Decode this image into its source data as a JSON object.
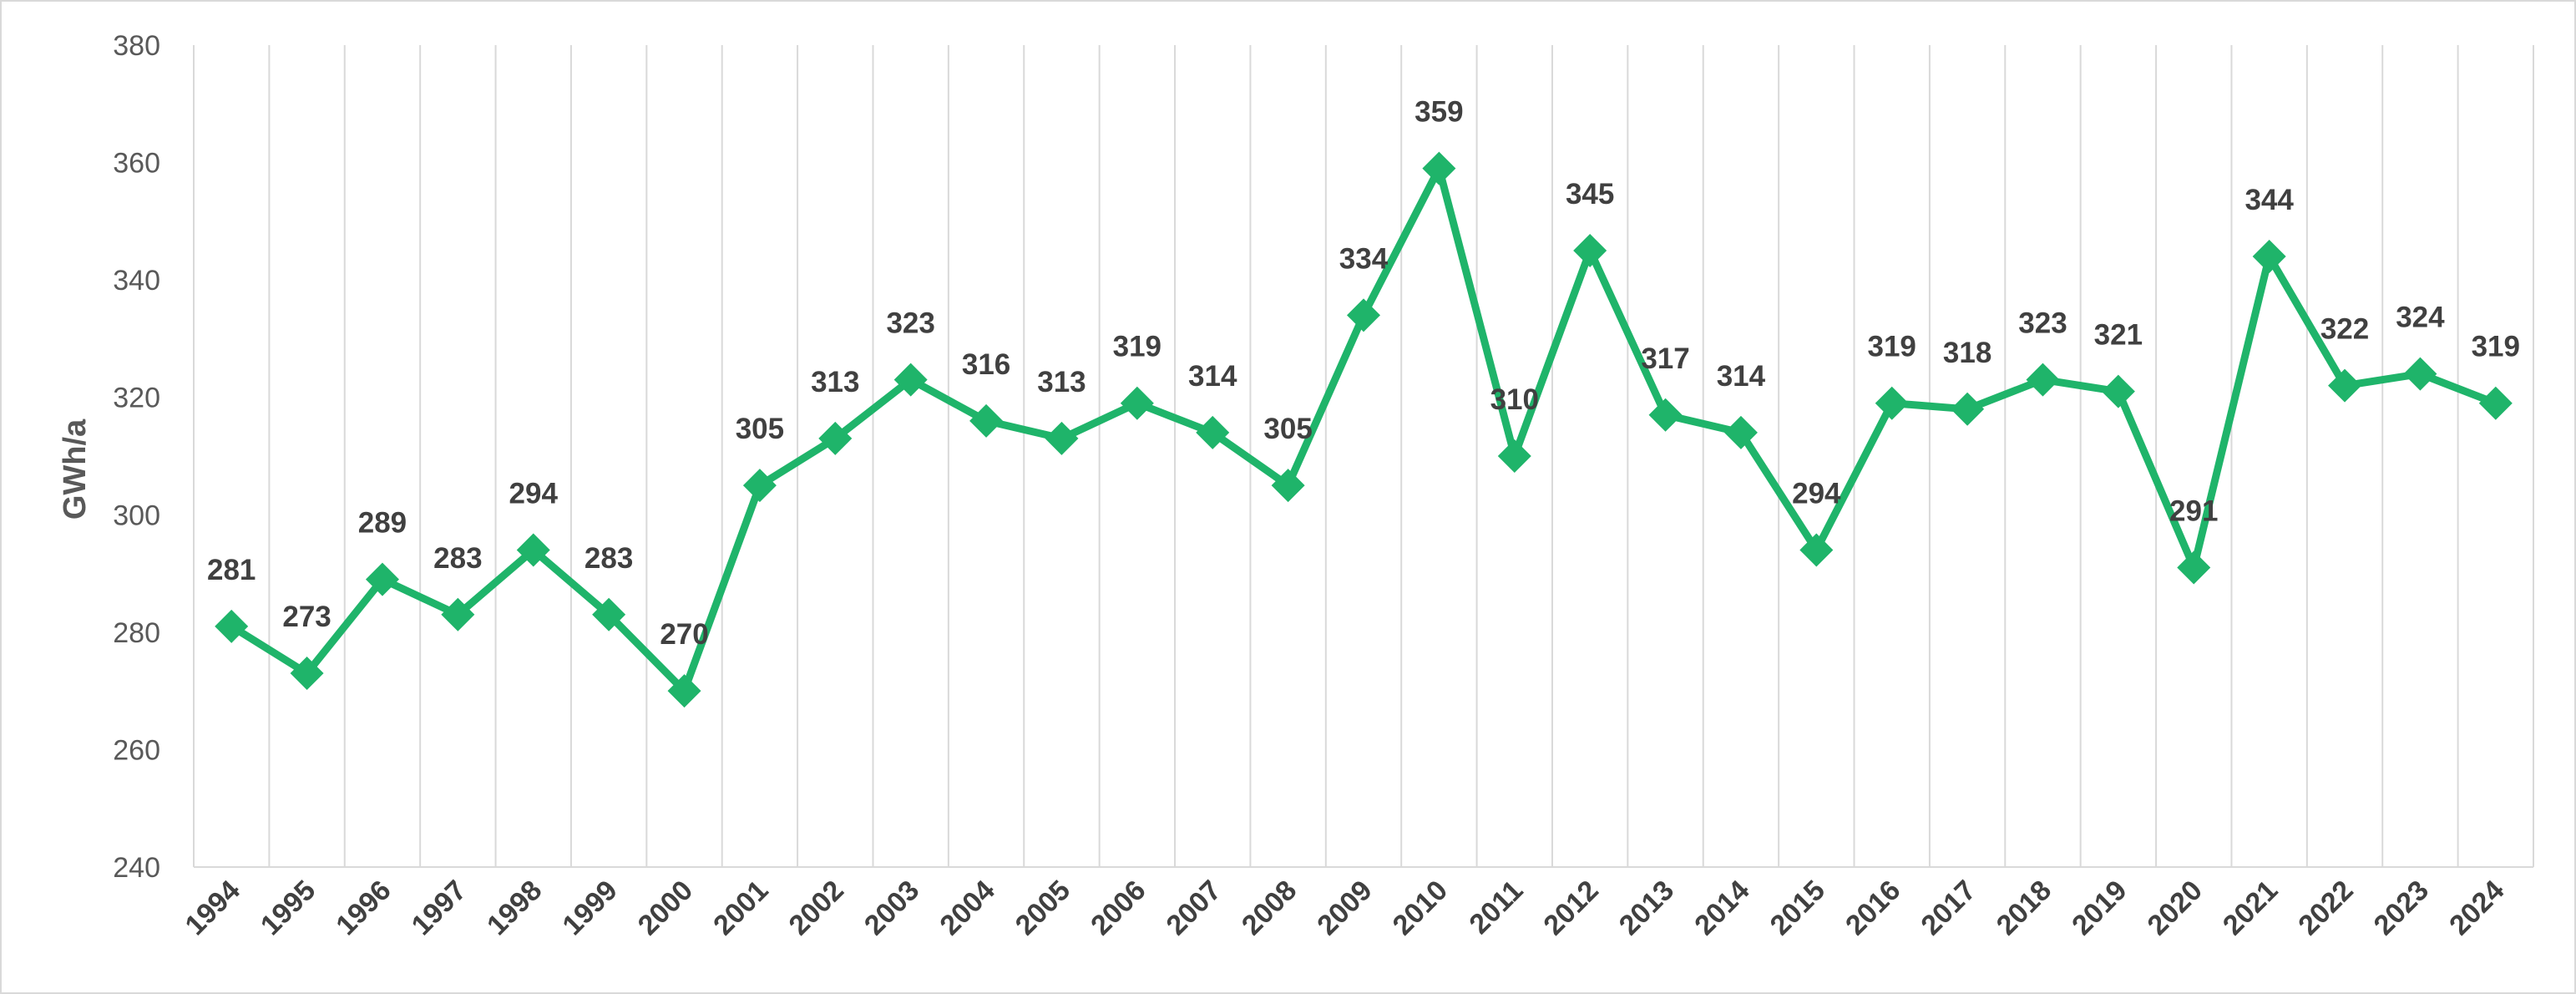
{
  "chart_data": {
    "type": "line",
    "title": "",
    "xlabel": "",
    "ylabel": "GWh/a",
    "ylim": [
      240,
      380
    ],
    "ytick_step": 20,
    "grid": "vertical",
    "legend": "none",
    "x": [
      "1994",
      "1995",
      "1996",
      "1997",
      "1998",
      "1999",
      "2000",
      "2001",
      "2002",
      "2003",
      "2004",
      "2005",
      "2006",
      "2007",
      "2008",
      "2009",
      "2010",
      "2011",
      "2012",
      "2013",
      "2014",
      "2015",
      "2016",
      "2017",
      "2018",
      "2019",
      "2020",
      "2021",
      "2022",
      "2023",
      "2024"
    ],
    "series": [
      {
        "values": [
          281,
          273,
          289,
          283,
          294,
          283,
          270,
          305,
          313,
          323,
          316,
          313,
          319,
          314,
          305,
          334,
          359,
          310,
          345,
          317,
          314,
          294,
          319,
          318,
          323,
          321,
          291,
          344,
          322,
          324,
          319
        ],
        "color": "#1fb46a",
        "marker": "diamond",
        "data_labels": true
      }
    ]
  }
}
